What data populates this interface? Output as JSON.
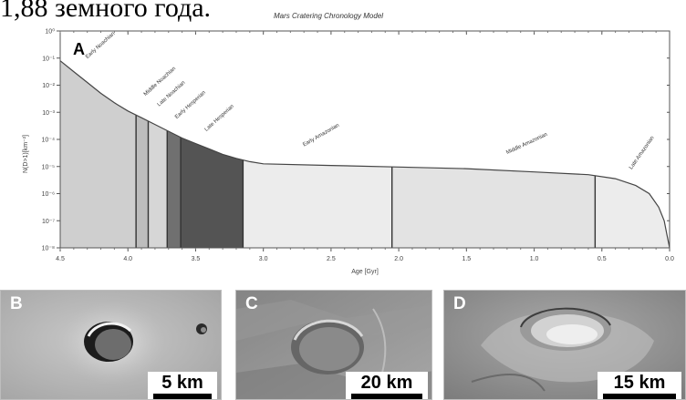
{
  "caption_fragment": "1,88 земного года.",
  "chart_data": {
    "type": "area",
    "panel_letter": "A",
    "title": "Mars Cratering Chronology Model",
    "xlabel": "Age [Gyr]",
    "ylabel": "N(D>1)[km⁻²]",
    "x_ticks": [
      "4.5",
      "4.0",
      "3.5",
      "3.0",
      "2.5",
      "2.0",
      "1.5",
      "1.0",
      "0.5",
      "0.0"
    ],
    "y_ticks": [
      "10⁰",
      "10⁻¹",
      "10⁻²",
      "10⁻³",
      "10⁻⁴",
      "10⁻⁵",
      "10⁻⁶",
      "10⁻⁷",
      "10⁻⁸"
    ],
    "x_range": [
      4.5,
      0.0
    ],
    "y_log_range": [
      -8,
      0
    ],
    "curve": {
      "x": [
        4.5,
        4.4,
        4.3,
        4.2,
        4.1,
        4.0,
        3.9,
        3.8,
        3.7,
        3.6,
        3.5,
        3.4,
        3.3,
        3.2,
        3.1,
        3.0,
        2.5,
        2.0,
        1.5,
        1.0,
        0.6,
        0.4,
        0.25,
        0.15,
        0.08,
        0.04,
        0.02,
        0.0
      ],
      "log_y": [
        -1.1,
        -1.5,
        -1.9,
        -2.3,
        -2.65,
        -2.95,
        -3.2,
        -3.45,
        -3.7,
        -3.95,
        -4.15,
        -4.35,
        -4.55,
        -4.7,
        -4.82,
        -4.9,
        -4.96,
        -5.02,
        -5.08,
        -5.2,
        -5.3,
        -5.45,
        -5.7,
        -6.0,
        -6.5,
        -7.0,
        -7.5,
        -8.0
      ]
    },
    "boundaries": [
      3.94,
      3.85,
      3.71,
      3.61,
      3.15,
      2.05,
      0.55
    ],
    "periods": [
      {
        "name": "Early Noachian",
        "from": 4.5,
        "to": 3.94,
        "color": "#cfcfcf"
      },
      {
        "name": "Middle Noachian",
        "from": 3.94,
        "to": 3.85,
        "color": "#bdbdbd"
      },
      {
        "name": "Late Noachian",
        "from": 3.85,
        "to": 3.71,
        "color": "#d6d6d6"
      },
      {
        "name": "Early Hesperian",
        "from": 3.71,
        "to": 3.61,
        "color": "#707070"
      },
      {
        "name": "Late Hesperian",
        "from": 3.61,
        "to": 3.15,
        "color": "#545454"
      },
      {
        "name": "Early Amazonian",
        "from": 3.15,
        "to": 2.05,
        "color": "#ececec"
      },
      {
        "name": "Middle Amazonian",
        "from": 2.05,
        "to": 0.55,
        "color": "#e3e3e3"
      },
      {
        "name": "Late Amazonian",
        "from": 0.55,
        "to": 0.0,
        "color": "#ececec"
      }
    ],
    "grid": false,
    "legend": "none"
  },
  "panels": [
    {
      "letter": "B",
      "scale": "5 km"
    },
    {
      "letter": "C",
      "scale": "20 km"
    },
    {
      "letter": "D",
      "scale": "15 km"
    }
  ]
}
